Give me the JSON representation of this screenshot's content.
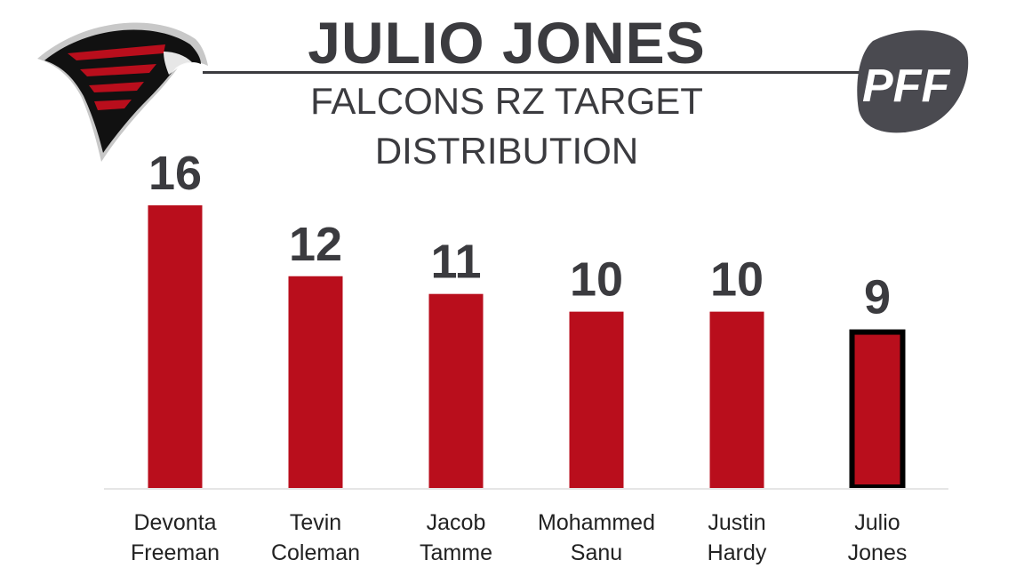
{
  "header": {
    "title": "JULIO JONES",
    "subtitle": "FALCONS RZ TARGET DISTRIBUTION",
    "brand_logo_text": "PFF",
    "team_logo_icon": "falcon-logo-icon"
  },
  "colors": {
    "bar": "#b90e1c",
    "highlight_border": "#000000",
    "text": "#3b3b3f",
    "axis": "#e6e6e6"
  },
  "chart_data": {
    "type": "bar",
    "categories": [
      [
        "Devonta",
        "Freeman"
      ],
      [
        "Tevin",
        "Coleman"
      ],
      [
        "Jacob",
        "Tamme"
      ],
      [
        "Mohammed",
        "Sanu"
      ],
      [
        "Justin",
        "Hardy"
      ],
      [
        "Julio",
        "Jones"
      ]
    ],
    "values": [
      16,
      12,
      11,
      10,
      10,
      9
    ],
    "highlight_index": 5,
    "ylim": [
      0,
      16
    ],
    "grid": false,
    "legend": "none"
  }
}
